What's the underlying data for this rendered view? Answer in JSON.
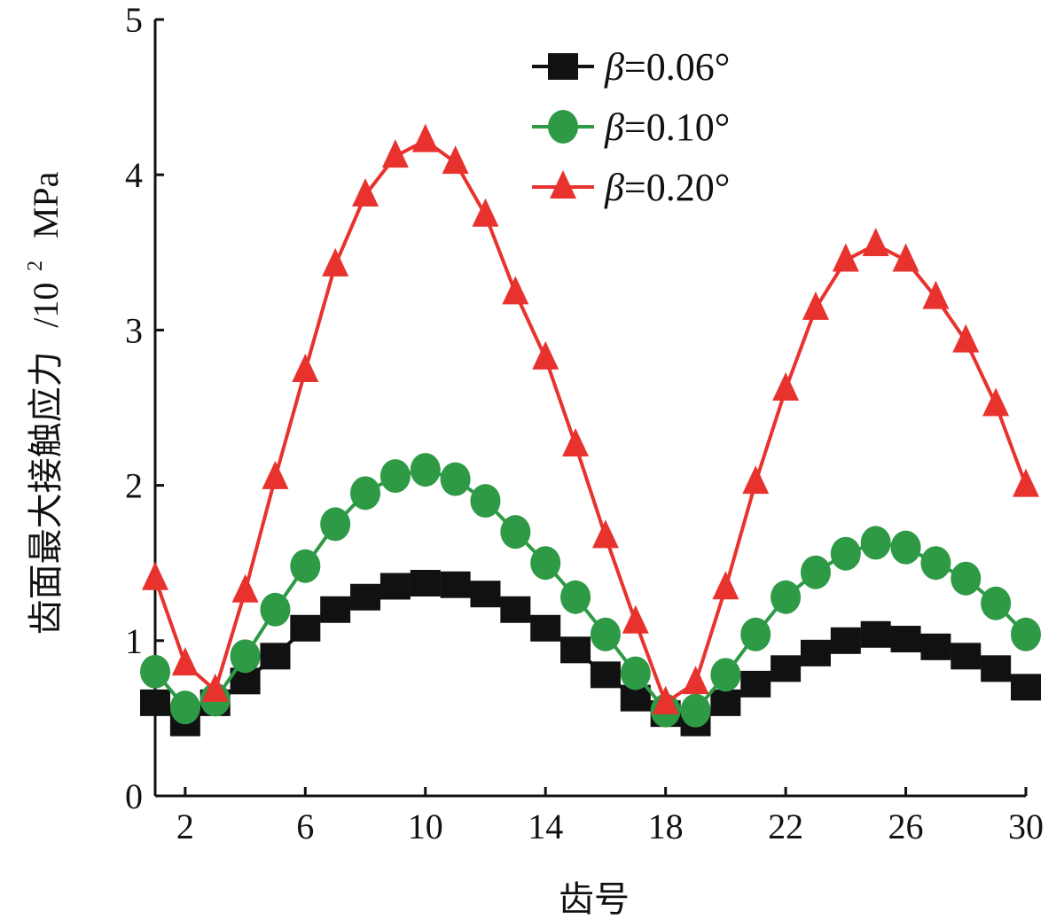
{
  "chart_data": {
    "type": "line",
    "xlabel": "齿号",
    "ylabel": "齿面最大接触应力",
    "ylabel_unit": "/10",
    "ylabel_unit_exp": "2",
    "ylabel_unit_suffix": "MPa",
    "xlim": [
      1,
      30
    ],
    "ylim": [
      0,
      5
    ],
    "x_ticks": [
      2,
      6,
      10,
      14,
      18,
      22,
      26,
      30
    ],
    "y_ticks": [
      0,
      1,
      2,
      3,
      4,
      5
    ],
    "grid": false,
    "legend_position": "top-right",
    "x": [
      1,
      2,
      3,
      4,
      5,
      6,
      7,
      8,
      9,
      10,
      11,
      12,
      13,
      14,
      15,
      16,
      17,
      18,
      19,
      20,
      21,
      22,
      23,
      24,
      25,
      26,
      27,
      28,
      29,
      30
    ],
    "series": [
      {
        "name": "β=0.06°",
        "legend_symbol": "β",
        "legend_value": "=0.06°",
        "color": "#111111",
        "marker": "square",
        "values": [
          0.6,
          0.47,
          0.6,
          0.74,
          0.9,
          1.08,
          1.2,
          1.28,
          1.35,
          1.37,
          1.36,
          1.3,
          1.2,
          1.08,
          0.94,
          0.78,
          0.63,
          0.53,
          0.47,
          0.6,
          0.72,
          0.82,
          0.92,
          1.0,
          1.04,
          1.01,
          0.96,
          0.9,
          0.82,
          0.7
        ]
      },
      {
        "name": "β=0.10°",
        "legend_symbol": "β",
        "legend_value": "=0.10°",
        "color": "#2e9a46",
        "marker": "circle",
        "values": [
          0.8,
          0.57,
          0.62,
          0.9,
          1.2,
          1.48,
          1.75,
          1.95,
          2.06,
          2.1,
          2.04,
          1.9,
          1.7,
          1.5,
          1.28,
          1.04,
          0.79,
          0.55,
          0.55,
          0.78,
          1.04,
          1.28,
          1.44,
          1.56,
          1.63,
          1.6,
          1.5,
          1.4,
          1.24,
          1.04
        ]
      },
      {
        "name": "β=0.20°",
        "legend_symbol": "β",
        "legend_value": "=0.20°",
        "color": "#e8322e",
        "marker": "triangle",
        "values": [
          1.4,
          0.85,
          0.68,
          1.32,
          2.05,
          2.74,
          3.42,
          3.87,
          4.12,
          4.22,
          4.08,
          3.74,
          3.24,
          2.82,
          2.26,
          1.67,
          1.12,
          0.6,
          0.73,
          1.34,
          2.02,
          2.62,
          3.14,
          3.45,
          3.55,
          3.45,
          3.21,
          2.93,
          2.52,
          2.0
        ]
      }
    ]
  }
}
